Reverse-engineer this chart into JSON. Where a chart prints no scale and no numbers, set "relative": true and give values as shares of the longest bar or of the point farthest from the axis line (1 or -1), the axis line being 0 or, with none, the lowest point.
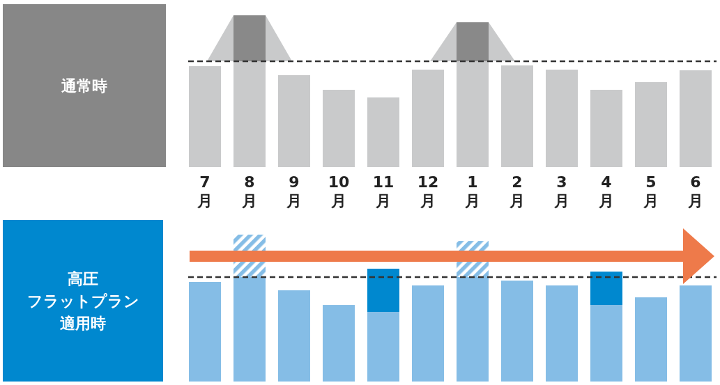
{
  "chart_data": [
    {
      "type": "bar",
      "title": "通常時",
      "relative": true,
      "stacked": true,
      "tick_labels": "x",
      "categories": [
        "7月",
        "8月",
        "9月",
        "10月",
        "11月",
        "12月",
        "1月",
        "2月",
        "3月",
        "4月",
        "5月",
        "6月"
      ],
      "series": [
        {
          "color": "#c9cacb",
          "values": [
            0.665,
            0.697,
            0.606,
            0.509,
            0.459,
            0.642,
            0.697,
            0.67,
            0.642,
            0.509,
            0.56,
            0.638
          ]
        },
        {
          "color": "#898989",
          "values": [
            null,
            0.303,
            null,
            null,
            null,
            null,
            0.257,
            null,
            null,
            null,
            null,
            null
          ]
        }
      ],
      "ref_lines": [
        {
          "axis": "y",
          "value": 0.697,
          "color": "#333333",
          "line_style": "dashed"
        }
      ]
    },
    {
      "type": "bar",
      "title": "高圧フラットプラン適用時",
      "relative": true,
      "stacked": true,
      "tick_labels": false,
      "categories": [
        "7月",
        "8月",
        "9月",
        "10月",
        "11月",
        "12月",
        "1月",
        "2月",
        "3月",
        "4月",
        "5月",
        "6月"
      ],
      "series": [
        {
          "color": "#85bde6",
          "values": [
            0.678,
            0.711,
            0.621,
            0.521,
            0.474,
            0.654,
            0.711,
            0.687,
            0.654,
            0.521,
            0.573,
            0.654
          ]
        },
        {
          "color": "#0088cf",
          "values": [
            null,
            null,
            null,
            null,
            0.294,
            null,
            null,
            null,
            null,
            0.227,
            null,
            null
          ]
        },
        {
          "color": "#85bde6",
          "values": [
            null,
            0.289,
            null,
            null,
            null,
            null,
            0.246,
            null,
            null,
            null,
            null,
            null
          ]
        }
      ],
      "ref_lines": [
        {
          "axis": "y",
          "value": 0.711,
          "color": "#333333",
          "line_style": "dashed"
        }
      ]
    }
  ]
}
